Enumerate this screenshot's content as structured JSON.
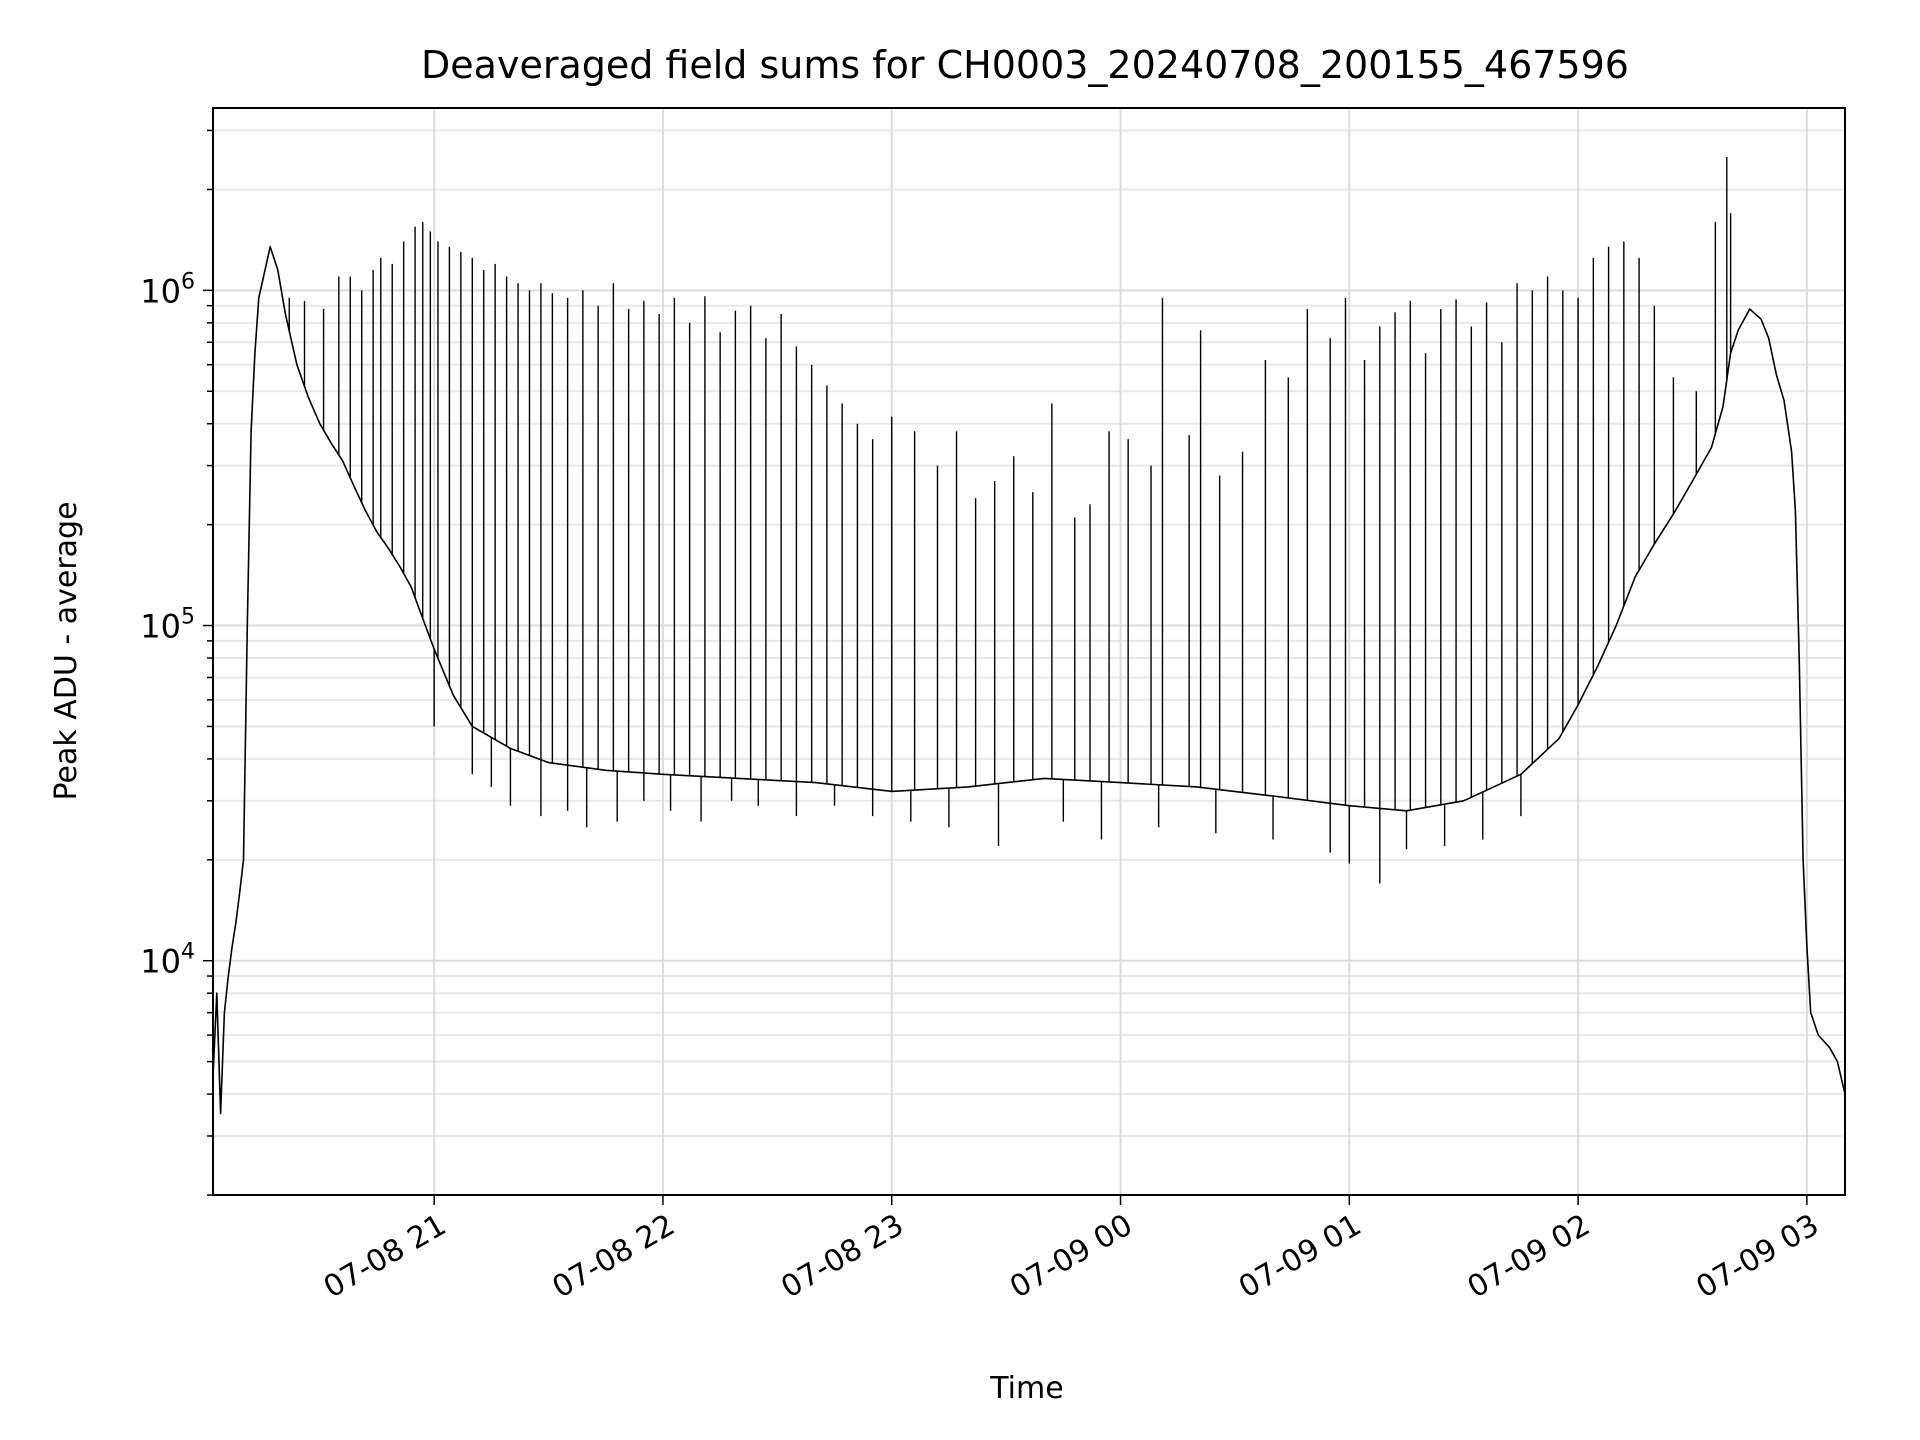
{
  "chart_data": {
    "type": "line",
    "title": "Deaveraged field sums for CH0003_20240708_200155_467596",
    "xlabel": "Time",
    "ylabel": "Peak ADU - average",
    "y_scale": "log",
    "grid": true,
    "grid_minor": true,
    "x_range": [
      "2024-07-08 20:02",
      "2024-07-09 03:10"
    ],
    "ylim": [
      2000,
      3500000
    ],
    "x_ticks": [
      {
        "value": "2024-07-08 21:00",
        "label": "07-08 21"
      },
      {
        "value": "2024-07-08 22:00",
        "label": "07-08 22"
      },
      {
        "value": "2024-07-08 23:00",
        "label": "07-08 23"
      },
      {
        "value": "2024-07-09 00:00",
        "label": "07-09 00"
      },
      {
        "value": "2024-07-09 01:00",
        "label": "07-09 01"
      },
      {
        "value": "2024-07-09 02:00",
        "label": "07-09 02"
      },
      {
        "value": "2024-07-09 03:00",
        "label": "07-09 03"
      }
    ],
    "y_ticks": [
      {
        "value": 10000,
        "base": "10",
        "exp": "4"
      },
      {
        "value": 100000,
        "base": "10",
        "exp": "5"
      },
      {
        "value": 1000000,
        "base": "10",
        "exp": "6"
      }
    ],
    "series_color": "#000000",
    "series": [
      {
        "name": "",
        "points": [
          [
            "2024-07-08 20:02",
            4500
          ],
          [
            "2024-07-08 20:03",
            8000
          ],
          [
            "2024-07-08 20:04",
            3500
          ],
          [
            "2024-07-08 20:05",
            7000
          ],
          [
            "2024-07-08 20:06",
            9000
          ],
          [
            "2024-07-08 20:07",
            11000
          ],
          [
            "2024-07-08 20:08",
            13000
          ],
          [
            "2024-07-08 20:09",
            16000
          ],
          [
            "2024-07-08 20:10",
            20000
          ],
          [
            "2024-07-08 20:11",
            100000
          ],
          [
            "2024-07-08 20:12",
            380000
          ],
          [
            "2024-07-08 20:13",
            650000
          ],
          [
            "2024-07-08 20:14",
            950000
          ],
          [
            "2024-07-08 20:16",
            1200000
          ],
          [
            "2024-07-08 20:17",
            1350000
          ],
          [
            "2024-07-08 20:19",
            1150000
          ],
          [
            "2024-07-08 20:21",
            850000
          ],
          [
            "2024-07-08 20:24",
            600000
          ],
          [
            "2024-07-08 20:27",
            480000
          ],
          [
            "2024-07-08 20:30",
            400000
          ],
          [
            "2024-07-08 20:33",
            350000
          ],
          [
            "2024-07-08 20:36",
            310000
          ],
          [
            "2024-07-08 20:39",
            260000
          ],
          [
            "2024-07-08 20:42",
            220000
          ],
          [
            "2024-07-08 20:45",
            190000
          ],
          [
            "2024-07-08 20:48",
            170000
          ],
          [
            "2024-07-08 20:51",
            150000
          ],
          [
            "2024-07-08 20:54",
            130000
          ],
          [
            "2024-07-08 20:57",
            105000
          ],
          [
            "2024-07-08 21:00",
            85000
          ],
          [
            "2024-07-08 21:05",
            62000
          ],
          [
            "2024-07-08 21:10",
            50000
          ],
          [
            "2024-07-08 21:20",
            43000
          ],
          [
            "2024-07-08 21:30",
            39000
          ],
          [
            "2024-07-08 21:45",
            37000
          ],
          [
            "2024-07-08 22:00",
            36000
          ],
          [
            "2024-07-08 22:20",
            35000
          ],
          [
            "2024-07-08 22:40",
            34000
          ],
          [
            "2024-07-08 23:00",
            32000
          ],
          [
            "2024-07-08 23:20",
            33000
          ],
          [
            "2024-07-08 23:40",
            35000
          ],
          [
            "2024-07-09 00:00",
            34000
          ],
          [
            "2024-07-09 00:20",
            33000
          ],
          [
            "2024-07-09 00:40",
            31000
          ],
          [
            "2024-07-09 01:00",
            29000
          ],
          [
            "2024-07-09 01:15",
            28000
          ],
          [
            "2024-07-09 01:30",
            30000
          ],
          [
            "2024-07-09 01:45",
            36000
          ],
          [
            "2024-07-09 01:55",
            46000
          ],
          [
            "2024-07-09 02:00",
            58000
          ],
          [
            "2024-07-09 02:05",
            75000
          ],
          [
            "2024-07-09 02:10",
            100000
          ],
          [
            "2024-07-09 02:15",
            140000
          ],
          [
            "2024-07-09 02:20",
            175000
          ],
          [
            "2024-07-09 02:25",
            215000
          ],
          [
            "2024-07-09 02:30",
            270000
          ],
          [
            "2024-07-09 02:35",
            340000
          ],
          [
            "2024-07-09 02:38",
            450000
          ],
          [
            "2024-07-09 02:40",
            650000
          ],
          [
            "2024-07-09 02:42",
            760000
          ],
          [
            "2024-07-09 02:45",
            880000
          ],
          [
            "2024-07-09 02:48",
            820000
          ],
          [
            "2024-07-09 02:50",
            720000
          ],
          [
            "2024-07-09 02:52",
            560000
          ],
          [
            "2024-07-09 02:54",
            470000
          ],
          [
            "2024-07-09 02:56",
            330000
          ],
          [
            "2024-07-09 02:57",
            220000
          ],
          [
            "2024-07-09 02:58",
            80000
          ],
          [
            "2024-07-09 02:59",
            20000
          ],
          [
            "2024-07-09 03:00",
            11000
          ],
          [
            "2024-07-09 03:01",
            7000
          ],
          [
            "2024-07-09 03:03",
            6000
          ],
          [
            "2024-07-09 03:06",
            5500
          ],
          [
            "2024-07-09 03:08",
            5000
          ],
          [
            "2024-07-09 03:10",
            4000
          ]
        ]
      }
    ],
    "spikes": [
      [
        "2024-07-08 20:22",
        950000
      ],
      [
        "2024-07-08 20:26",
        930000
      ],
      [
        "2024-07-08 20:31",
        880000
      ],
      [
        "2024-07-08 20:35",
        1100000
      ],
      [
        "2024-07-08 20:38",
        1100000
      ],
      [
        "2024-07-08 20:41",
        1000000
      ],
      [
        "2024-07-08 20:44",
        1150000
      ],
      [
        "2024-07-08 20:46",
        1250000
      ],
      [
        "2024-07-08 20:49",
        1200000
      ],
      [
        "2024-07-08 20:52",
        1400000
      ],
      [
        "2024-07-08 20:55",
        1550000
      ],
      [
        "2024-07-08 20:57",
        1600000
      ],
      [
        "2024-07-08 20:59",
        1500000
      ],
      [
        "2024-07-08 21:01",
        1400000
      ],
      [
        "2024-07-08 21:04",
        1350000
      ],
      [
        "2024-07-08 21:07",
        1300000
      ],
      [
        "2024-07-08 21:10",
        1250000
      ],
      [
        "2024-07-08 21:13",
        1150000
      ],
      [
        "2024-07-08 21:16",
        1200000
      ],
      [
        "2024-07-08 21:19",
        1100000
      ],
      [
        "2024-07-08 21:22",
        1050000
      ],
      [
        "2024-07-08 21:25",
        1000000
      ],
      [
        "2024-07-08 21:28",
        1050000
      ],
      [
        "2024-07-08 21:31",
        980000
      ],
      [
        "2024-07-08 21:35",
        950000
      ],
      [
        "2024-07-08 21:39",
        1000000
      ],
      [
        "2024-07-08 21:43",
        900000
      ],
      [
        "2024-07-08 21:47",
        1050000
      ],
      [
        "2024-07-08 21:51",
        880000
      ],
      [
        "2024-07-08 21:55",
        930000
      ],
      [
        "2024-07-08 21:59",
        850000
      ],
      [
        "2024-07-08 22:03",
        950000
      ],
      [
        "2024-07-08 22:07",
        800000
      ],
      [
        "2024-07-08 22:11",
        960000
      ],
      [
        "2024-07-08 22:15",
        750000
      ],
      [
        "2024-07-08 22:19",
        870000
      ],
      [
        "2024-07-08 22:23",
        900000
      ],
      [
        "2024-07-08 22:27",
        720000
      ],
      [
        "2024-07-08 22:31",
        850000
      ],
      [
        "2024-07-08 22:35",
        680000
      ],
      [
        "2024-07-08 22:39",
        600000
      ],
      [
        "2024-07-08 22:43",
        520000
      ],
      [
        "2024-07-08 22:47",
        460000
      ],
      [
        "2024-07-08 22:51",
        400000
      ],
      [
        "2024-07-08 22:55",
        360000
      ],
      [
        "2024-07-08 23:00",
        420000
      ],
      [
        "2024-07-08 23:06",
        380000
      ],
      [
        "2024-07-08 23:12",
        300000
      ],
      [
        "2024-07-08 23:17",
        380000
      ],
      [
        "2024-07-08 23:22",
        240000
      ],
      [
        "2024-07-08 23:27",
        270000
      ],
      [
        "2024-07-08 23:32",
        320000
      ],
      [
        "2024-07-08 23:37",
        250000
      ],
      [
        "2024-07-08 23:42",
        460000
      ],
      [
        "2024-07-08 23:48",
        210000
      ],
      [
        "2024-07-08 23:52",
        230000
      ],
      [
        "2024-07-08 23:57",
        380000
      ],
      [
        "2024-07-09 00:02",
        360000
      ],
      [
        "2024-07-09 00:08",
        300000
      ],
      [
        "2024-07-09 00:11",
        950000
      ],
      [
        "2024-07-09 00:18",
        370000
      ],
      [
        "2024-07-09 00:21",
        760000
      ],
      [
        "2024-07-09 00:26",
        280000
      ],
      [
        "2024-07-09 00:32",
        330000
      ],
      [
        "2024-07-09 00:38",
        620000
      ],
      [
        "2024-07-09 00:44",
        550000
      ],
      [
        "2024-07-09 00:49",
        880000
      ],
      [
        "2024-07-09 00:55",
        720000
      ],
      [
        "2024-07-09 00:59",
        950000
      ],
      [
        "2024-07-09 01:04",
        620000
      ],
      [
        "2024-07-09 01:08",
        780000
      ],
      [
        "2024-07-09 01:12",
        860000
      ],
      [
        "2024-07-09 01:16",
        930000
      ],
      [
        "2024-07-09 01:20",
        650000
      ],
      [
        "2024-07-09 01:24",
        880000
      ],
      [
        "2024-07-09 01:28",
        940000
      ],
      [
        "2024-07-09 01:32",
        780000
      ],
      [
        "2024-07-09 01:36",
        920000
      ],
      [
        "2024-07-09 01:40",
        700000
      ],
      [
        "2024-07-09 01:44",
        1050000
      ],
      [
        "2024-07-09 01:48",
        1000000
      ],
      [
        "2024-07-09 01:52",
        1100000
      ],
      [
        "2024-07-09 01:56",
        1000000
      ],
      [
        "2024-07-09 02:00",
        950000
      ],
      [
        "2024-07-09 02:04",
        1250000
      ],
      [
        "2024-07-09 02:08",
        1350000
      ],
      [
        "2024-07-09 02:12",
        1400000
      ],
      [
        "2024-07-09 02:16",
        1250000
      ],
      [
        "2024-07-09 02:20",
        900000
      ],
      [
        "2024-07-09 02:25",
        550000
      ],
      [
        "2024-07-09 02:31",
        500000
      ],
      [
        "2024-07-09 02:36",
        1600000
      ],
      [
        "2024-07-09 02:39",
        2500000
      ],
      [
        "2024-07-09 02:40",
        1700000
      ]
    ],
    "dips": [
      [
        "2024-07-08 21:00",
        50000
      ],
      [
        "2024-07-08 21:10",
        36000
      ],
      [
        "2024-07-08 21:15",
        33000
      ],
      [
        "2024-07-08 21:20",
        29000
      ],
      [
        "2024-07-08 21:28",
        27000
      ],
      [
        "2024-07-08 21:35",
        28000
      ],
      [
        "2024-07-08 21:40",
        25000
      ],
      [
        "2024-07-08 21:48",
        26000
      ],
      [
        "2024-07-08 21:55",
        30000
      ],
      [
        "2024-07-08 22:02",
        28000
      ],
      [
        "2024-07-08 22:10",
        26000
      ],
      [
        "2024-07-08 22:18",
        30000
      ],
      [
        "2024-07-08 22:25",
        29000
      ],
      [
        "2024-07-08 22:35",
        27000
      ],
      [
        "2024-07-08 22:45",
        29000
      ],
      [
        "2024-07-08 22:55",
        27000
      ],
      [
        "2024-07-08 23:05",
        26000
      ],
      [
        "2024-07-08 23:15",
        25000
      ],
      [
        "2024-07-08 23:28",
        22000
      ],
      [
        "2024-07-08 23:45",
        26000
      ],
      [
        "2024-07-08 23:55",
        23000
      ],
      [
        "2024-07-09 00:10",
        25000
      ],
      [
        "2024-07-09 00:25",
        24000
      ],
      [
        "2024-07-09 00:40",
        23000
      ],
      [
        "2024-07-09 00:55",
        21000
      ],
      [
        "2024-07-09 01:00",
        19500
      ],
      [
        "2024-07-09 01:08",
        17000
      ],
      [
        "2024-07-09 01:15",
        21500
      ],
      [
        "2024-07-09 01:25",
        22000
      ],
      [
        "2024-07-09 01:35",
        23000
      ],
      [
        "2024-07-09 01:45",
        27000
      ]
    ]
  }
}
